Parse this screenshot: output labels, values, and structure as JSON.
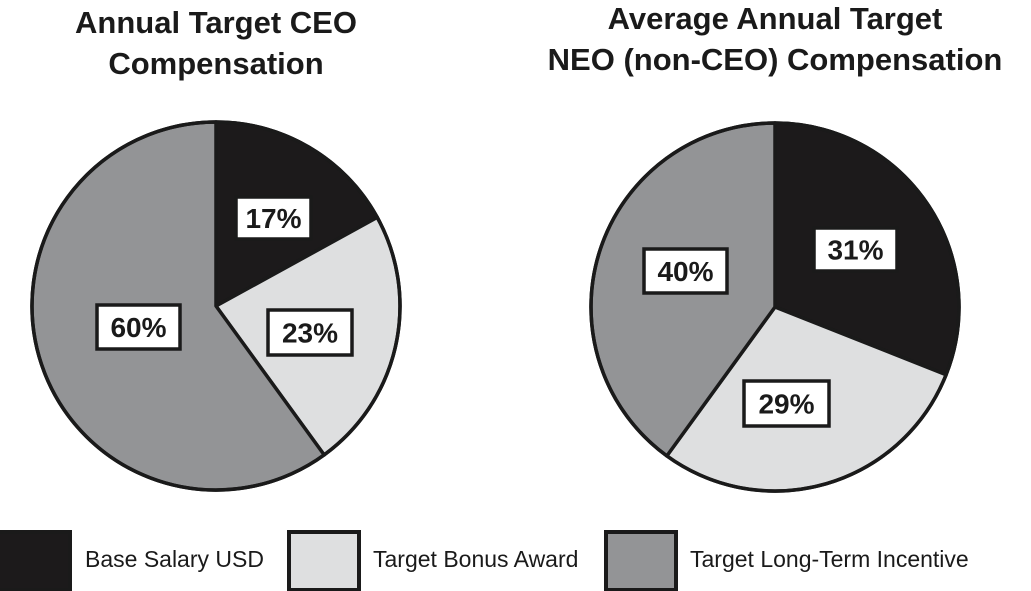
{
  "colors": {
    "base_salary": "#1c1a1b",
    "target_bonus": "#dedfe0",
    "long_term_incentive": "#939496",
    "outline": "#1a1a1a",
    "label_box": "#ffffff"
  },
  "chart_data": [
    {
      "type": "pie",
      "title_lines": [
        "Annual Target CEO",
        "Compensation"
      ],
      "categories": [
        "Base Salary USD",
        "Target Bonus Award",
        "Target Long-Term Incentive"
      ],
      "values": [
        17,
        23,
        60
      ],
      "labels": [
        "17%",
        "23%",
        "60%"
      ],
      "start": "12 o'clock",
      "direction": "clockwise"
    },
    {
      "type": "pie",
      "title_lines": [
        "Average Annual Target",
        "NEO (non-CEO) Compensation"
      ],
      "categories": [
        "Base Salary USD",
        "Target Bonus Award",
        "Target Long-Term Incentive"
      ],
      "values": [
        31,
        29,
        40
      ],
      "labels": [
        "31%",
        "29%",
        "40%"
      ],
      "start": "12 o'clock",
      "direction": "clockwise"
    }
  ],
  "legend": {
    "placement": "bottom",
    "items": [
      {
        "label": "Base Salary USD",
        "color_key": "base_salary"
      },
      {
        "label": "Target Bonus Award",
        "color_key": "target_bonus"
      },
      {
        "label": "Target Long-Term Incentive",
        "color_key": "long_term_incentive"
      }
    ]
  }
}
